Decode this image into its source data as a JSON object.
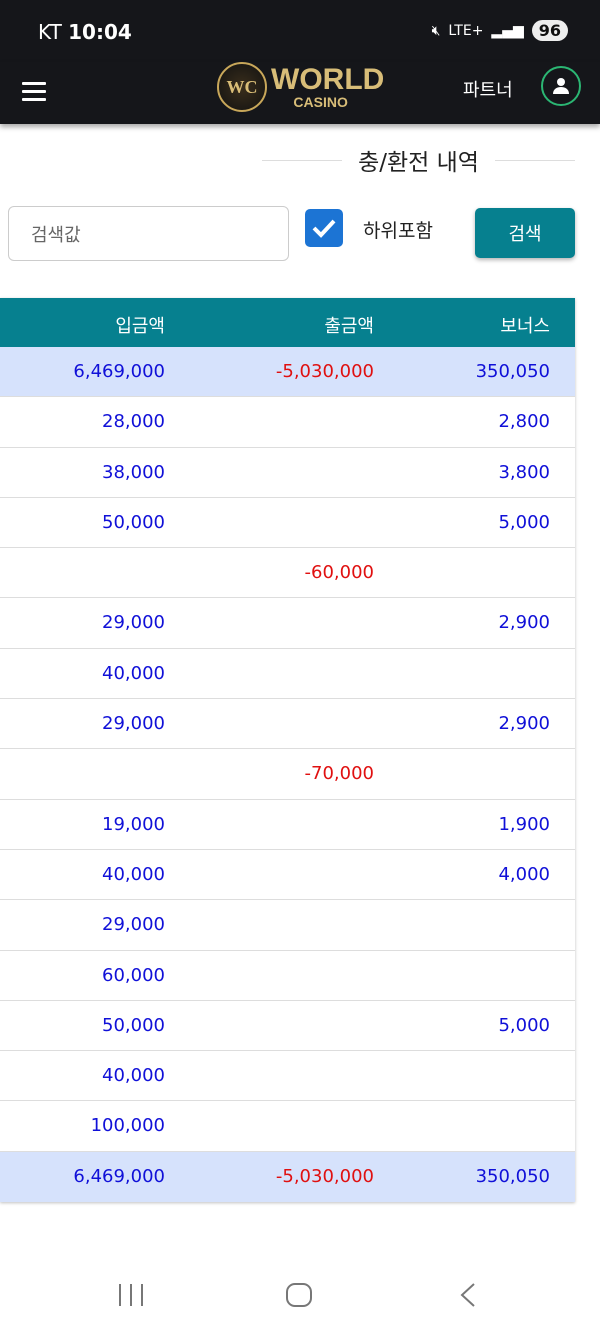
{
  "status": {
    "carrier": "KT",
    "time": "10:04",
    "network": "LTE+",
    "battery": "96"
  },
  "header": {
    "partner_label": "파트너",
    "logo_mark": "WC",
    "logo_line1": "WORLD",
    "logo_line2": "CASINO"
  },
  "page": {
    "title": "충/환전 내역"
  },
  "search": {
    "placeholder": "검색값",
    "checkbox_label": "하위포함",
    "checked": true,
    "button_label": "검색"
  },
  "table": {
    "headers": [
      "입금액",
      "출금액",
      "보너스"
    ],
    "summary_top": [
      "6,469,000",
      "-5,030,000",
      "350,050"
    ],
    "rows": [
      [
        "28,000",
        "",
        "2,800"
      ],
      [
        "38,000",
        "",
        "3,800"
      ],
      [
        "50,000",
        "",
        "5,000"
      ],
      [
        "",
        "-60,000",
        ""
      ],
      [
        "29,000",
        "",
        "2,900"
      ],
      [
        "40,000",
        "",
        ""
      ],
      [
        "29,000",
        "",
        "2,900"
      ],
      [
        "",
        "-70,000",
        ""
      ],
      [
        "19,000",
        "",
        "1,900"
      ],
      [
        "40,000",
        "",
        "4,000"
      ],
      [
        "29,000",
        "",
        ""
      ],
      [
        "60,000",
        "",
        ""
      ],
      [
        "50,000",
        "",
        "5,000"
      ],
      [
        "40,000",
        "",
        ""
      ],
      [
        "100,000",
        "",
        ""
      ]
    ],
    "summary_bottom": [
      "6,469,000",
      "-5,030,000",
      "350,050"
    ]
  },
  "colors": {
    "accent": "#06808f",
    "deposit": "#1010d8",
    "withdraw": "#e01010",
    "summary_bg": "#d6e2fc"
  }
}
